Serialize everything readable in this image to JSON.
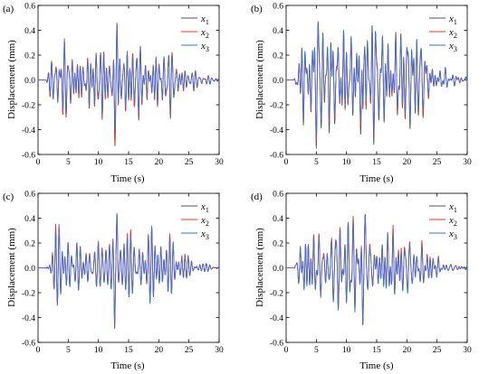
{
  "figure": {
    "panels": [
      {
        "label": "(a)",
        "ylabel": "Displacement (mm)",
        "xlabel": "Time (s)"
      },
      {
        "label": "(b)",
        "ylabel": "Displacement (mm)",
        "xlabel": "Time (s)"
      },
      {
        "label": "(c)",
        "ylabel": "Displacement (mm)",
        "xlabel": "Time (s)"
      },
      {
        "label": "(d)",
        "ylabel": "Displacement (mm)",
        "xlabel": "Time (s)"
      }
    ],
    "legend": [
      {
        "base": "x",
        "sub": "1",
        "color": "#555555"
      },
      {
        "base": "x",
        "sub": "2",
        "color": "#e8382a"
      },
      {
        "base": "x",
        "sub": "3",
        "color": "#3a6fe0"
      }
    ]
  },
  "chart_data": [
    {
      "type": "line",
      "label": "(a)",
      "xlabel": "Time (s)",
      "ylabel": "Displacement (mm)",
      "xlim": [
        0,
        30
      ],
      "ylim": [
        -0.6,
        0.6
      ],
      "xticks": [
        "0",
        "5",
        "10",
        "15",
        "20",
        "25",
        "30"
      ],
      "yticks": [
        "-0.6",
        "-0.4",
        "-0.2",
        "0.0",
        "0.2",
        "0.4",
        "0.6"
      ],
      "legend_position": "top-right",
      "series": [
        {
          "name": "x1",
          "color": "#555555",
          "peak_max": 0.46,
          "peak_min": -0.53,
          "t_start": 1.3,
          "t_end": 30
        },
        {
          "name": "x2",
          "color": "#e8382a",
          "peak_max": 0.45,
          "peak_min": -0.52,
          "t_start": 1.3,
          "t_end": 30
        },
        {
          "name": "x3",
          "color": "#3a6fe0",
          "peak_max": 0.43,
          "peak_min": -0.4,
          "t_start": 1.3,
          "t_end": 30
        }
      ]
    },
    {
      "type": "line",
      "label": "(b)",
      "xlabel": "Time (s)",
      "ylabel": "Displacement (mm)",
      "xlim": [
        0,
        30
      ],
      "ylim": [
        -0.6,
        0.6
      ],
      "xticks": [
        "0",
        "5",
        "10",
        "15",
        "20",
        "25",
        "30"
      ],
      "yticks": [
        "-0.6",
        "-0.4",
        "-0.2",
        "0.0",
        "0.2",
        "0.4",
        "0.6"
      ],
      "legend_position": "top-right",
      "series": [
        {
          "name": "x1",
          "color": "#555555",
          "peak_max": 0.47,
          "peak_min": -0.55,
          "t_start": 1.3,
          "t_end": 30
        },
        {
          "name": "x2",
          "color": "#e8382a",
          "peak_max": 0.43,
          "peak_min": -0.49,
          "t_start": 1.3,
          "t_end": 30
        },
        {
          "name": "x3",
          "color": "#3a6fe0",
          "peak_max": 0.43,
          "peak_min": -0.45,
          "t_start": 1.3,
          "t_end": 30
        }
      ]
    },
    {
      "type": "line",
      "label": "(c)",
      "xlabel": "Time (s)",
      "ylabel": "Displacement (mm)",
      "xlim": [
        0,
        30
      ],
      "ylim": [
        -0.6,
        0.6
      ],
      "xticks": [
        "0",
        "5",
        "10",
        "15",
        "20",
        "25",
        "30"
      ],
      "yticks": [
        "-0.6",
        "-0.4",
        "-0.2",
        "0.0",
        "0.2",
        "0.4",
        "0.6"
      ],
      "legend_position": "top-right",
      "series": [
        {
          "name": "x1",
          "color": "#555555",
          "peak_max": 0.43,
          "peak_min": -0.49,
          "t_start": 1.3,
          "t_end": 30
        },
        {
          "name": "x2",
          "color": "#e8382a",
          "peak_max": 0.44,
          "peak_min": -0.46,
          "t_start": 1.3,
          "t_end": 30
        },
        {
          "name": "x3",
          "color": "#3a6fe0",
          "peak_max": 0.43,
          "peak_min": -0.45,
          "t_start": 1.3,
          "t_end": 30
        }
      ]
    },
    {
      "type": "line",
      "label": "(d)",
      "xlabel": "Time (s)",
      "ylabel": "Displacement (mm)",
      "xlim": [
        0,
        30
      ],
      "ylim": [
        -0.6,
        0.6
      ],
      "xticks": [
        "0",
        "5",
        "10",
        "15",
        "20",
        "25",
        "30"
      ],
      "yticks": [
        "-0.6",
        "-0.4",
        "-0.2",
        "0.0",
        "0.2",
        "0.4",
        "0.6"
      ],
      "legend_position": "top-right",
      "series": [
        {
          "name": "x1",
          "color": "#555555",
          "peak_max": 0.43,
          "peak_min": -0.46,
          "t_start": 1.3,
          "t_end": 30
        },
        {
          "name": "x2",
          "color": "#e8382a",
          "peak_max": 0.43,
          "peak_min": -0.46,
          "t_start": 1.3,
          "t_end": 30
        },
        {
          "name": "x3",
          "color": "#3a6fe0",
          "peak_max": 0.43,
          "peak_min": -0.45,
          "t_start": 1.3,
          "t_end": 30
        }
      ]
    }
  ]
}
